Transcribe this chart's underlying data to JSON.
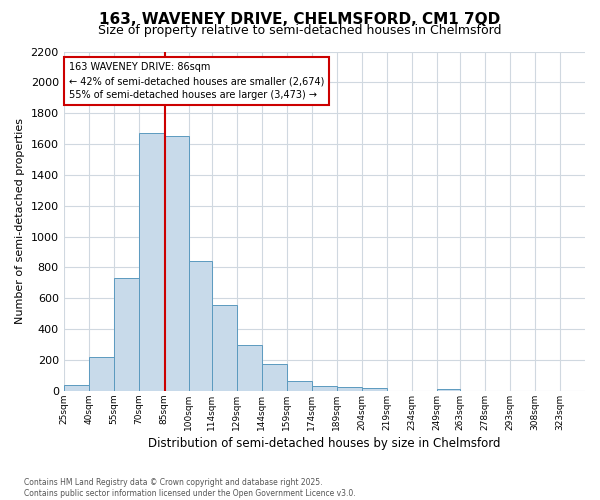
{
  "title": "163, WAVENEY DRIVE, CHELMSFORD, CM1 7QD",
  "subtitle": "Size of property relative to semi-detached houses in Chelmsford",
  "xlabel": "Distribution of semi-detached houses by size in Chelmsford",
  "ylabel": "Number of semi-detached properties",
  "footnote1": "Contains HM Land Registry data © Crown copyright and database right 2025.",
  "footnote2": "Contains public sector information licensed under the Open Government Licence v3.0.",
  "annotation_title": "163 WAVENEY DRIVE: 86sqm",
  "annotation_line1": "← 42% of semi-detached houses are smaller (2,674)",
  "annotation_line2": "55% of semi-detached houses are larger (3,473) →",
  "property_size": 86,
  "bin_labels": [
    "25sqm",
    "40sqm",
    "55sqm",
    "70sqm",
    "85sqm",
    "100sqm",
    "114sqm",
    "129sqm",
    "144sqm",
    "159sqm",
    "174sqm",
    "189sqm",
    "204sqm",
    "219sqm",
    "234sqm",
    "249sqm",
    "263sqm",
    "278sqm",
    "293sqm",
    "308sqm",
    "323sqm"
  ],
  "bin_edges": [
    25,
    40,
    55,
    70,
    85,
    100,
    114,
    129,
    144,
    159,
    174,
    189,
    204,
    219,
    234,
    249,
    263,
    278,
    293,
    308,
    323
  ],
  "bin_widths": [
    15,
    15,
    15,
    15,
    15,
    14,
    15,
    15,
    15,
    15,
    15,
    15,
    15,
    15,
    15,
    14,
    15,
    15,
    15,
    15,
    15
  ],
  "bar_values": [
    40,
    220,
    730,
    1670,
    1650,
    840,
    560,
    295,
    175,
    65,
    35,
    25,
    20,
    0,
    0,
    15,
    0,
    0,
    0,
    0
  ],
  "bar_color": "#c8daea",
  "bar_edge_color": "#5b9abf",
  "vline_x": 86,
  "vline_color": "#cc0000",
  "ylim": [
    0,
    2200
  ],
  "yticks": [
    0,
    200,
    400,
    600,
    800,
    1000,
    1200,
    1400,
    1600,
    1800,
    2000,
    2200
  ],
  "annotation_box_edgecolor": "#cc0000",
  "background_color": "#ffffff",
  "grid_color": "#d0d8e0",
  "title_fontsize": 11,
  "subtitle_fontsize": 9
}
